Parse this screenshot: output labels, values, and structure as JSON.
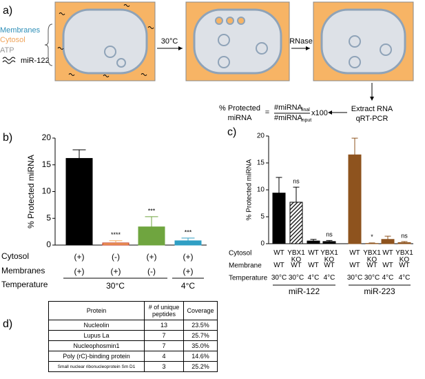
{
  "diagram": {
    "label": "a)",
    "legend": [
      "Membranes",
      "Cytosol",
      "ATP",
      "miR-122"
    ],
    "steps": [
      "30°C",
      "RNase"
    ],
    "extraction": [
      "Extract RNA",
      "qRT-PCR"
    ],
    "formula": {
      "lhs": [
        "% Protected",
        "miRNA"
      ],
      "equals": "=",
      "numerator": "#miRNA",
      "numerator_sub": "final",
      "denominator": "#miRNA",
      "denominator_sub": "input",
      "factor": "x100"
    }
  },
  "chart_data": [
    {
      "type": "bar",
      "label": "b)",
      "ylabel": "% Protected miRNA",
      "ylim": [
        0,
        20
      ],
      "yticks": [
        0,
        5,
        10,
        15,
        20
      ],
      "values": [
        16.2,
        0.4,
        3.4,
        0.8
      ],
      "errors": [
        1.6,
        0.4,
        1.9,
        0.5
      ],
      "colors": [
        "#000000",
        "#f4a55c",
        "#6fa53f",
        "#2f9fc4"
      ],
      "hatched": [
        false,
        false,
        false,
        false
      ],
      "significance": [
        null,
        "****",
        "***",
        "***"
      ],
      "rows": [
        {
          "label": "Cytosol",
          "values": [
            "(+)",
            "(-)",
            "(+)",
            "(+)"
          ]
        },
        {
          "label": "Membranes",
          "values": [
            "(+)",
            "(+)",
            "(-)",
            "(+)"
          ]
        },
        {
          "label": "Temperature",
          "groups": [
            "30°C",
            "4°C"
          ]
        }
      ]
    },
    {
      "type": "bar",
      "label": "c)",
      "ylabel": "% Protected miRNA",
      "ylim": [
        0,
        20
      ],
      "yticks": [
        0,
        5,
        10,
        15,
        20
      ],
      "values": [
        9.4,
        7.7,
        0.5,
        0.4,
        16.5,
        0.05,
        0.8,
        0.2
      ],
      "errors": [
        2.9,
        2.8,
        0.3,
        0.2,
        3.1,
        0.1,
        0.6,
        0.2
      ],
      "colors": [
        "#000000",
        "#000000",
        "#000000",
        "#000000",
        "#8e531e",
        "#8e531e",
        "#8e531e",
        "#8e531e"
      ],
      "hatched": [
        false,
        true,
        false,
        false,
        false,
        false,
        false,
        false
      ],
      "significance": [
        null,
        "ns",
        null,
        "ns",
        null,
        "*",
        null,
        "ns"
      ],
      "rows": [
        {
          "label": "Cytosol",
          "values": [
            "WT",
            "YBX1 KO",
            "WT",
            "YBX1 KO",
            "WT",
            "YBX1 KO",
            "WT",
            "YBX1 KO"
          ]
        },
        {
          "label": "Membrane",
          "values": [
            "WT",
            "WT",
            "WT",
            "WT",
            "WT",
            "WT",
            "WT",
            "WT"
          ]
        },
        {
          "label": "Temperature",
          "values": [
            "30°C",
            "30°C",
            "4°C",
            "4°C",
            "30°C",
            "30°C",
            "4°C",
            "4°C"
          ]
        }
      ],
      "groups": [
        "miR-122",
        "miR-223"
      ]
    }
  ],
  "table": {
    "label": "d)",
    "header": [
      "Protein",
      "# of unique peptides",
      "Coverage"
    ],
    "rows": [
      [
        "Nucleolin",
        "13",
        "23.5%"
      ],
      [
        "Lupus La",
        "7",
        "25.7%"
      ],
      [
        "Nucleophosmin1",
        "7",
        "35.0%"
      ],
      [
        "Poly (rC)-binding protein",
        "4",
        "14.6%"
      ],
      [
        "Small nuclear ribonucleoprotein Sm D1",
        "3",
        "25.2%"
      ]
    ]
  }
}
